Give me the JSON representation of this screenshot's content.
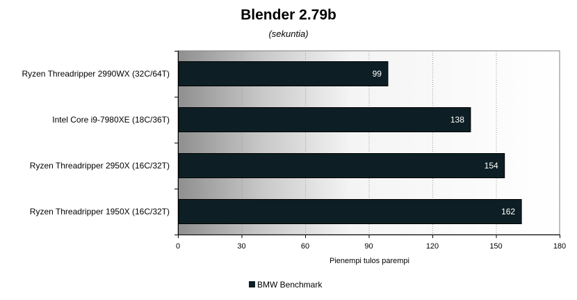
{
  "chart_data": {
    "type": "bar",
    "orientation": "horizontal",
    "title": "Blender 2.79b",
    "subtitle": "(sekuntia)",
    "xlabel": "Pienempi tulos parempi",
    "ylabel": "",
    "categories": [
      "Ryzen Threadripper 2990WX (32C/64T)",
      "Intel Core i9-7980XE (18C/36T)",
      "Ryzen Threadripper 2950X (16C/32T)",
      "Ryzen Threadripper 1950X (16C/32T)"
    ],
    "series": [
      {
        "name": "BMW Benchmark",
        "values": [
          99,
          138,
          154,
          162
        ],
        "color": "#0d1f24"
      }
    ],
    "xlim": [
      0,
      180
    ],
    "xticks": [
      0,
      30,
      60,
      90,
      120,
      150,
      180
    ],
    "grid": "vertical-dotted",
    "legend_position": "bottom-center"
  }
}
